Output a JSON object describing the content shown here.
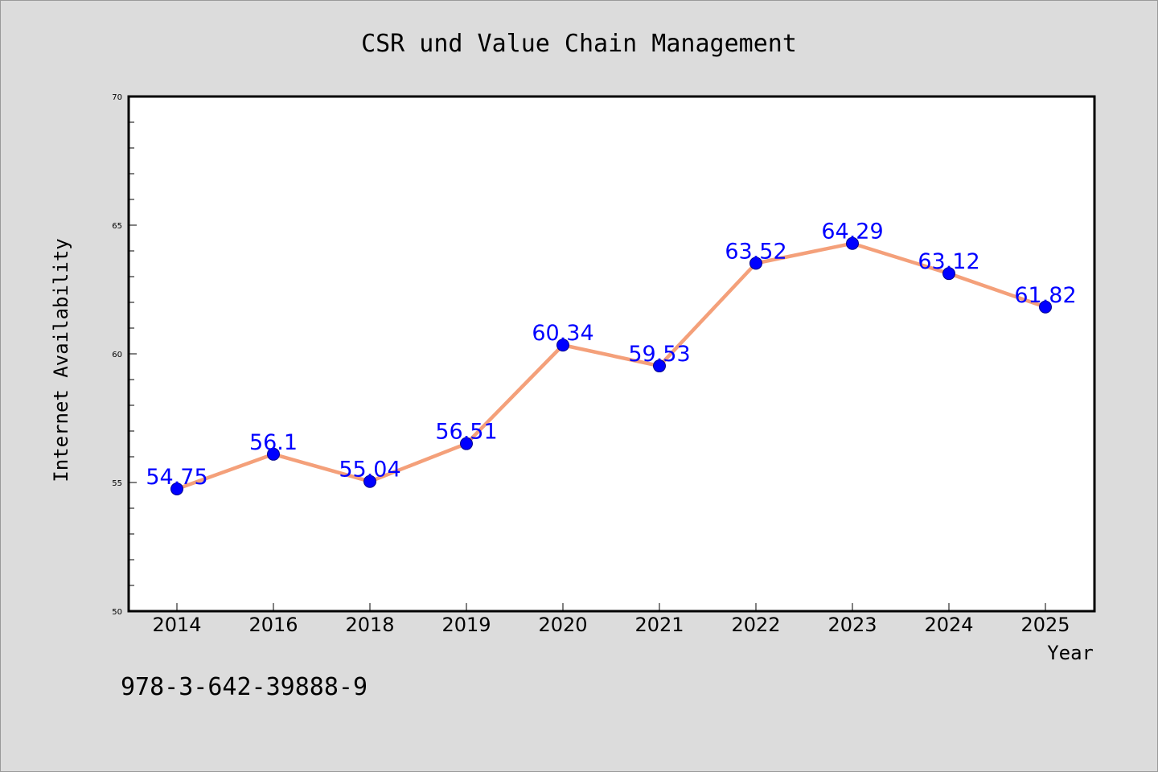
{
  "chart_data": {
    "type": "line",
    "title": "CSR und Value Chain Management",
    "xlabel": "Year",
    "ylabel": "Internet Availability",
    "categories": [
      "2014",
      "2016",
      "2018",
      "2019",
      "2020",
      "2021",
      "2022",
      "2023",
      "2024",
      "2025"
    ],
    "series": [
      {
        "values": [
          54.75,
          56.1,
          55.04,
          56.51,
          60.34,
          59.53,
          63.52,
          64.29,
          63.12,
          61.82
        ],
        "labels": [
          "54.75",
          "56.1",
          "55.04",
          "56.51",
          "60.34",
          "59.53",
          "63.52",
          "64.29",
          "63.12",
          "61.82"
        ],
        "line_color": "#f4a07a",
        "marker_color": "#0000ff"
      }
    ],
    "ylim": [
      50,
      70
    ],
    "yticks": [
      "50",
      "55",
      "60",
      "65",
      "70"
    ],
    "grid": false,
    "legend": "none"
  },
  "footnote": "978-3-642-39888-9"
}
